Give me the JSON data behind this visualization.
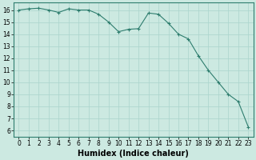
{
  "x": [
    0,
    1,
    2,
    3,
    4,
    5,
    6,
    7,
    8,
    9,
    10,
    11,
    12,
    13,
    14,
    15,
    16,
    17,
    18,
    19,
    20,
    21,
    22,
    23
  ],
  "y": [
    16.0,
    16.1,
    16.15,
    16.0,
    15.8,
    16.1,
    16.0,
    16.0,
    15.65,
    15.0,
    14.2,
    14.4,
    14.45,
    15.75,
    15.65,
    14.9,
    14.0,
    13.6,
    12.2,
    11.0,
    10.0,
    9.0,
    8.4,
    6.3
  ],
  "line_color": "#2e7d6e",
  "marker": "+",
  "marker_size": 3,
  "marker_lw": 0.8,
  "line_width": 0.8,
  "bg_color": "#cce9e1",
  "grid_color_major": "#aad4cc",
  "grid_color_minor": "#aad4cc",
  "xlabel": "Humidex (Indice chaleur)",
  "ylim": [
    5.5,
    16.6
  ],
  "xlim": [
    -0.5,
    23.5
  ],
  "yticks": [
    6,
    7,
    8,
    9,
    10,
    11,
    12,
    13,
    14,
    15,
    16
  ],
  "xticks": [
    0,
    1,
    2,
    3,
    4,
    5,
    6,
    7,
    8,
    9,
    10,
    11,
    12,
    13,
    14,
    15,
    16,
    17,
    18,
    19,
    20,
    21,
    22,
    23
  ],
  "tick_label_fontsize": 5.5,
  "xlabel_fontsize": 7,
  "spine_color": "#2e7d6e"
}
